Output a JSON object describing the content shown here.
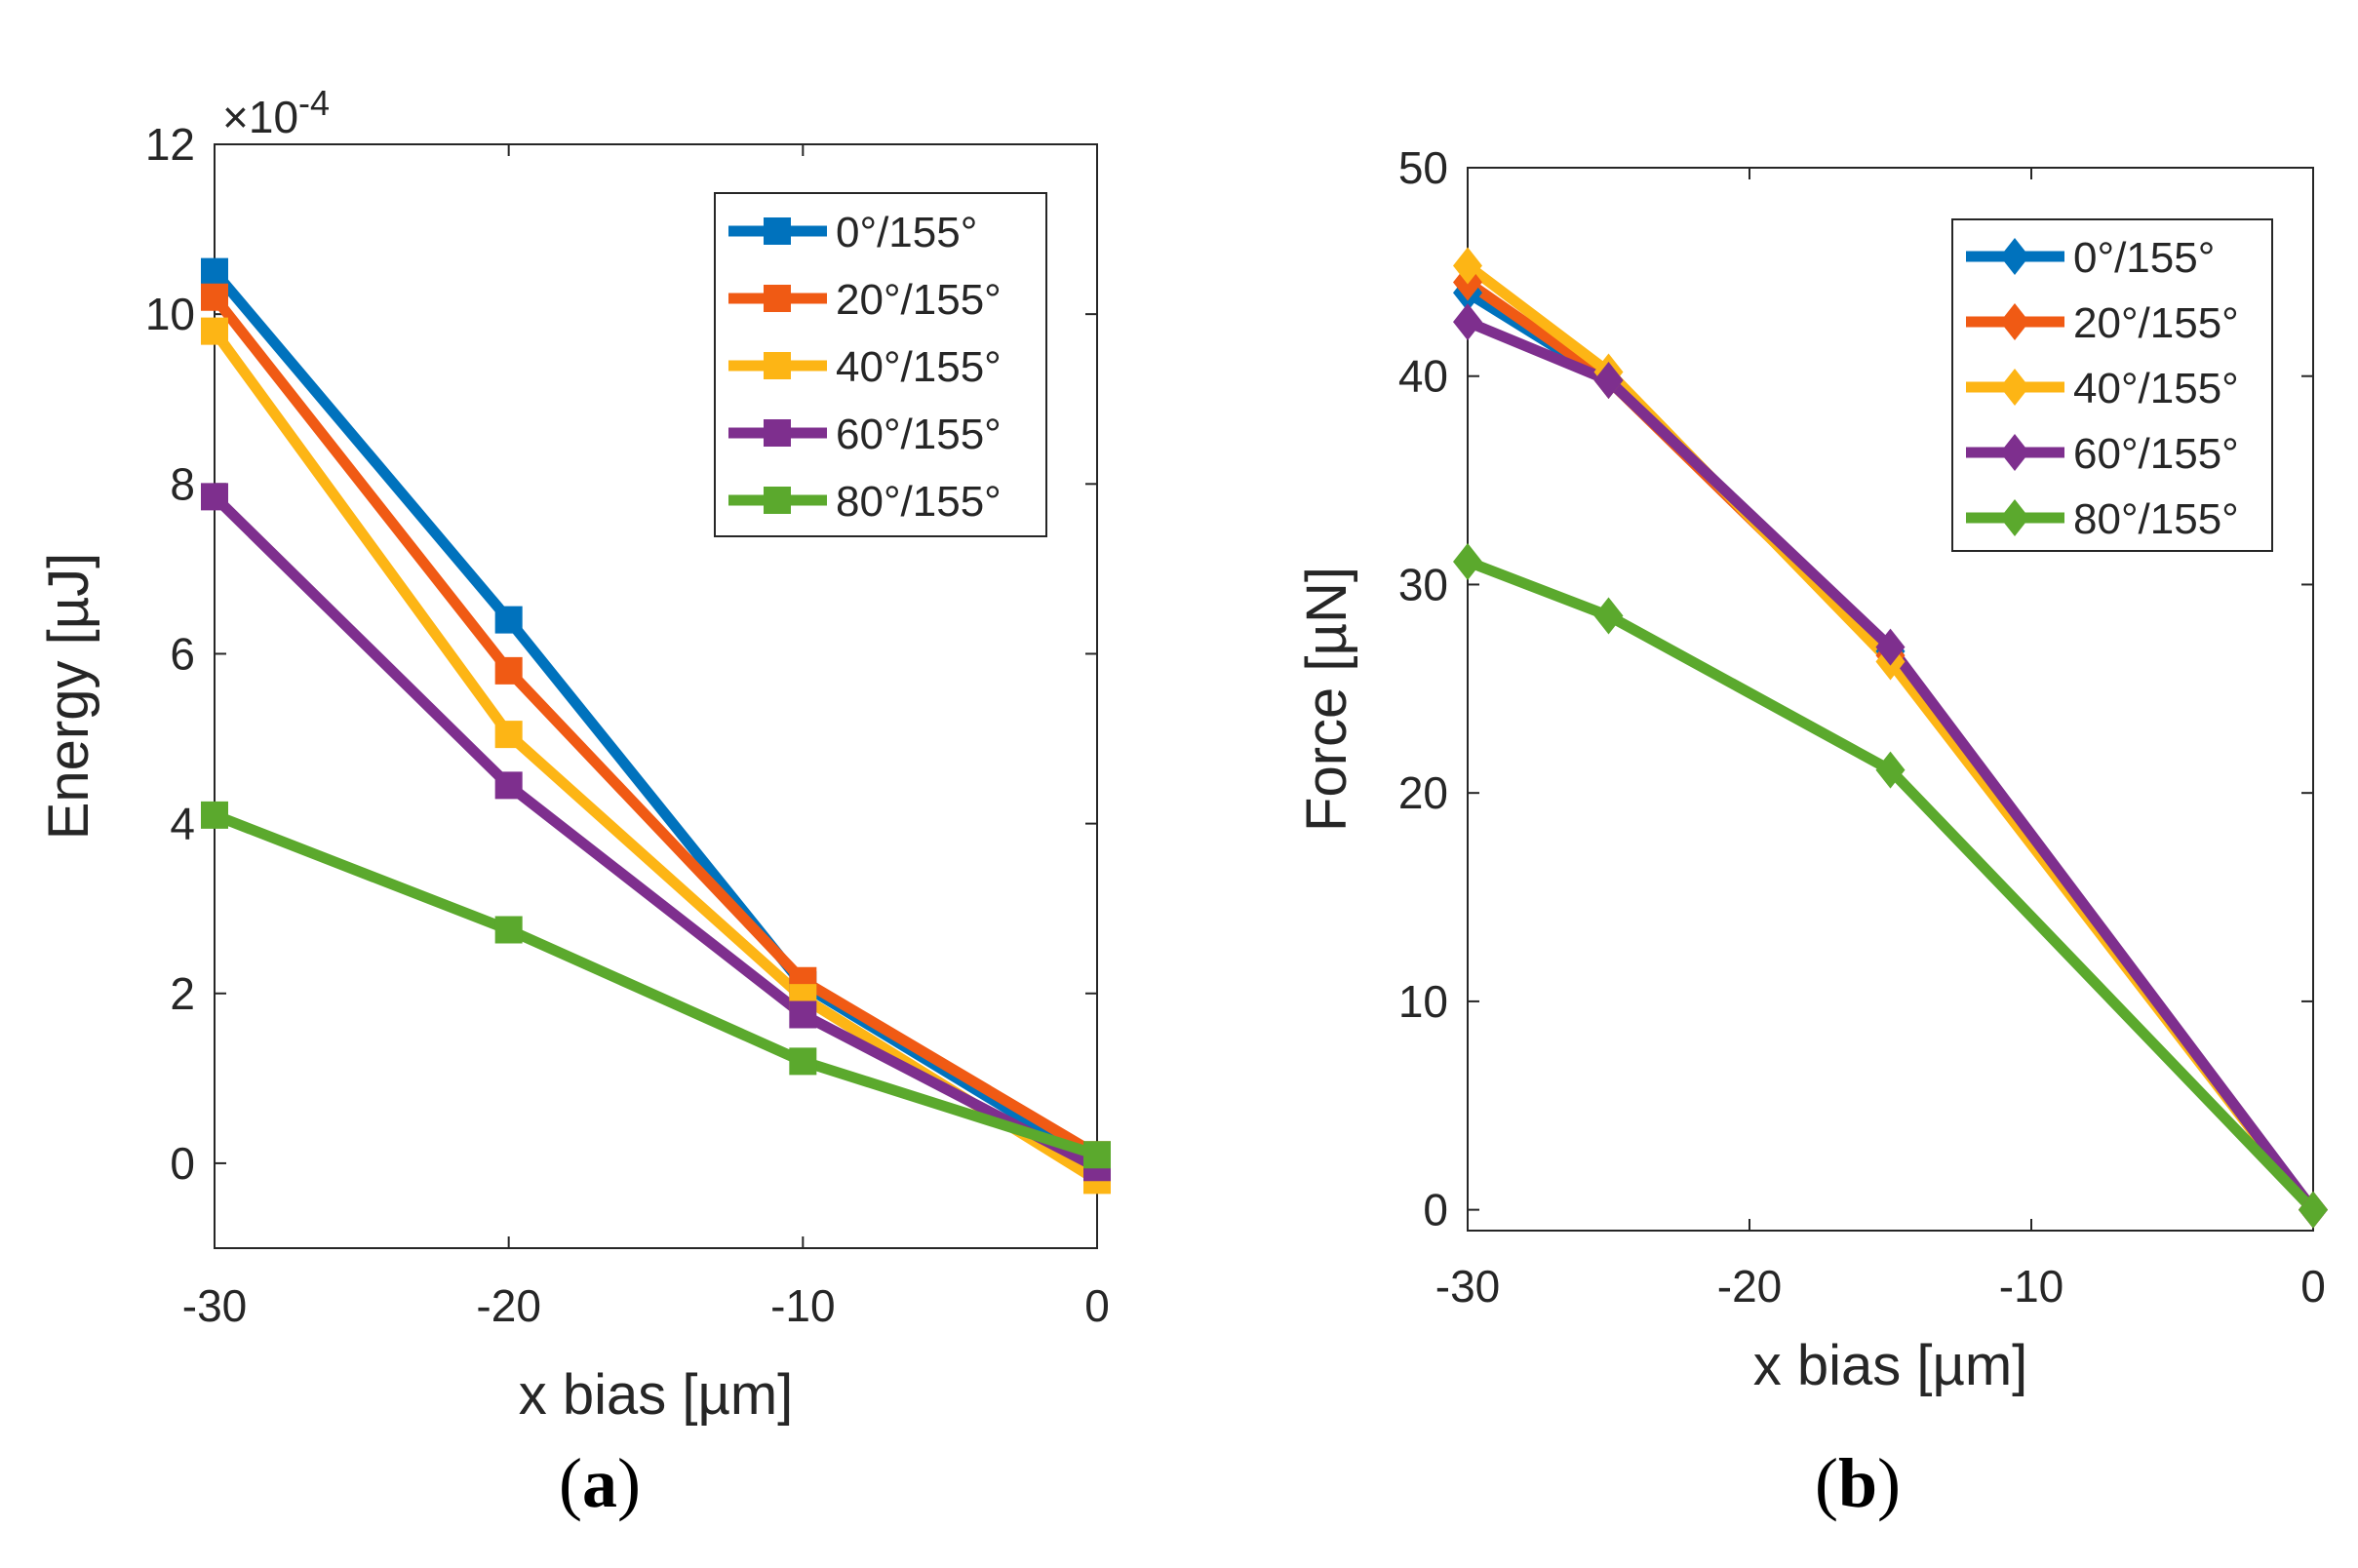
{
  "chart_data": [
    {
      "type": "line",
      "panel": "a",
      "subfigure_label_open": "(",
      "subfigure_label_letter": "a",
      "subfigure_label_close": ")",
      "xlabel": "x bias [µm]",
      "ylabel": "Energy [µJ]",
      "exponent_label": "×10",
      "exponent_power": "-4",
      "xlim": [
        -30,
        0
      ],
      "ylim": [
        -1,
        12
      ],
      "xticks": [
        -30,
        -20,
        -10,
        0
      ],
      "yticks": [
        0,
        2,
        4,
        6,
        8,
        10,
        12
      ],
      "marker": "square",
      "legend_position": "top-right",
      "x": [
        -30,
        -20,
        -10,
        0
      ],
      "series": [
        {
          "name": "0°/155°",
          "color": "#0072BD",
          "values": [
            10.5,
            6.4,
            2.1,
            0.0
          ]
        },
        {
          "name": "20°/155°",
          "color": "#F05A14",
          "values": [
            10.2,
            5.8,
            2.15,
            0.1
          ]
        },
        {
          "name": "40°/155°",
          "color": "#FDB515",
          "values": [
            9.8,
            5.05,
            1.95,
            -0.2
          ]
        },
        {
          "name": "60°/155°",
          "color": "#7E2F8E",
          "values": [
            7.85,
            4.45,
            1.75,
            -0.05
          ]
        },
        {
          "name": "80°/155°",
          "color": "#5BA92D",
          "values": [
            4.1,
            2.75,
            1.2,
            0.1
          ]
        }
      ]
    },
    {
      "type": "line",
      "panel": "b",
      "subfigure_label_open": "(",
      "subfigure_label_letter": "b",
      "subfigure_label_close": ")",
      "xlabel": "x bias [µm]",
      "ylabel": "Force [µN]",
      "xlim": [
        -30,
        0
      ],
      "ylim": [
        -1,
        50
      ],
      "xticks": [
        -30,
        -20,
        -10,
        0
      ],
      "yticks": [
        0,
        10,
        20,
        30,
        40,
        50
      ],
      "marker": "diamond",
      "legend_position": "top-right",
      "x": [
        -30,
        -25,
        -15,
        0
      ],
      "series": [
        {
          "name": "0°/155°",
          "color": "#0072BD",
          "values": [
            44.0,
            39.8,
            26.8,
            0.0
          ]
        },
        {
          "name": "20°/155°",
          "color": "#F05A14",
          "values": [
            44.5,
            39.8,
            26.6,
            0.0
          ]
        },
        {
          "name": "40°/155°",
          "color": "#FDB515",
          "values": [
            45.3,
            40.2,
            26.3,
            0.0
          ]
        },
        {
          "name": "60°/155°",
          "color": "#7E2F8E",
          "values": [
            42.6,
            39.8,
            27.0,
            0.0
          ]
        },
        {
          "name": "80°/155°",
          "color": "#5BA92D",
          "values": [
            31.1,
            28.5,
            21.1,
            0.0
          ]
        }
      ]
    }
  ]
}
